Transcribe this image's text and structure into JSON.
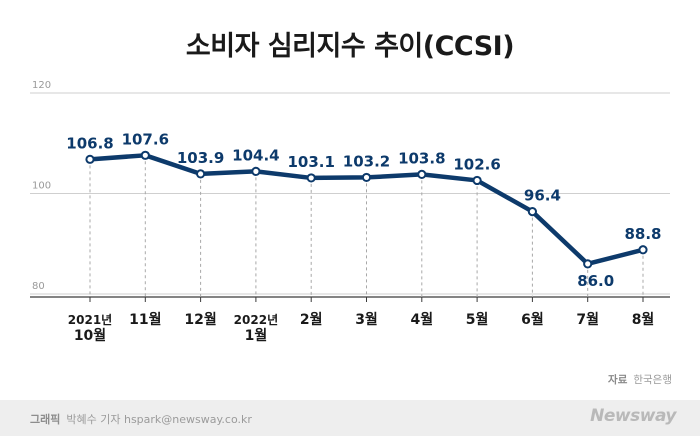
{
  "title": "소비자 심리지수 추이(CCSI)",
  "source": {
    "label": "자료",
    "value": "한국은행"
  },
  "footer": {
    "label": "그래픽",
    "credit": "박혜수 기자 hspark@newsway.co.kr",
    "brand": "Newsway"
  },
  "colors": {
    "line": "#0d3a6b",
    "grid": "#cfcfcf",
    "axis": "#3a3a3a",
    "text": "#1a1a1a"
  },
  "chart_data": {
    "type": "line",
    "title": "소비자 심리지수 추이(CCSI)",
    "categories": [
      [
        "2021년",
        "10월"
      ],
      [
        "11월"
      ],
      [
        "12월"
      ],
      [
        "2022년",
        "1월"
      ],
      [
        "2월"
      ],
      [
        "3월"
      ],
      [
        "4월"
      ],
      [
        "5월"
      ],
      [
        "6월"
      ],
      [
        "7월"
      ],
      [
        "8월"
      ]
    ],
    "values": [
      106.8,
      107.6,
      103.9,
      104.4,
      103.1,
      103.2,
      103.8,
      102.6,
      96.4,
      86.0,
      88.8
    ],
    "data_labels": [
      "106.8",
      "107.6",
      "103.9",
      "104.4",
      "103.1",
      "103.2",
      "103.8",
      "102.6",
      "96.4",
      "86.0",
      "88.8"
    ],
    "y_ticks": [
      "120",
      "100",
      "80"
    ],
    "ylim": [
      80,
      120
    ],
    "grid": true,
    "xlabel": "",
    "ylabel": ""
  }
}
